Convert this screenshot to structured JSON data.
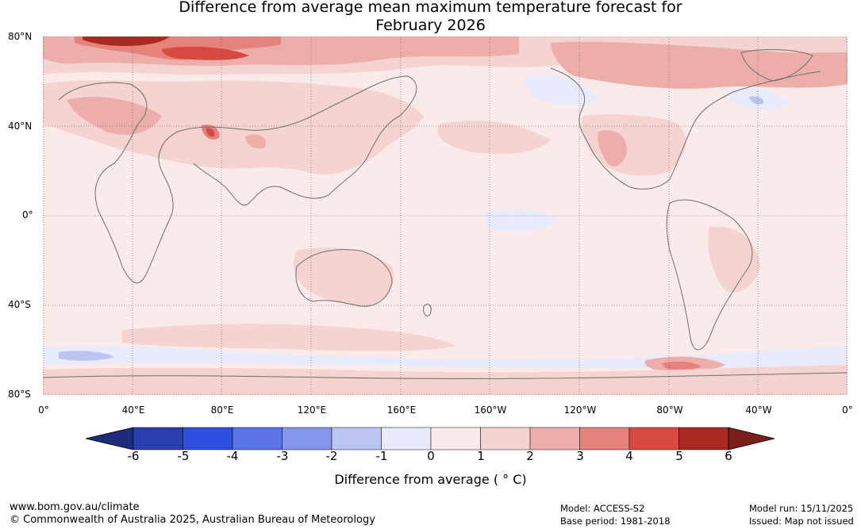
{
  "title": {
    "line1": "Difference from average mean maximum temperature forecast for",
    "line2": "February 2026"
  },
  "map": {
    "ocean_fill": "#fbeaea",
    "coast_color": "#6e6e6e",
    "lat_labels": [
      "80°N",
      "40°N",
      "0°",
      "40°S",
      "80°S"
    ],
    "lon_labels": [
      "0°",
      "40°E",
      "80°E",
      "120°E",
      "160°E",
      "160°W",
      "120°W",
      "80°W",
      "40°W",
      "0°"
    ]
  },
  "colorbar": {
    "colors": [
      "#1e2a7a",
      "#2a3fae",
      "#2f4fe0",
      "#5a73e6",
      "#8396ea",
      "#bcc4f2",
      "#e8ebfb",
      "#fbeaea",
      "#f5d3d1",
      "#edadaa",
      "#e6827c",
      "#d84a3f",
      "#a92a22",
      "#7a1f1a"
    ],
    "ticks": [
      "-6",
      "-5",
      "-4",
      "-3",
      "-2",
      "-1",
      "0",
      "1",
      "2",
      "3",
      "4",
      "5",
      "6"
    ],
    "label": "Difference from average ( ° C)"
  },
  "footer": {
    "site": "www.bom.gov.au/climate",
    "copyright": "© Commonwealth of Australia 2025, Australian Bureau of Meteorology",
    "model": "Model: ACCESS-S2",
    "base_period": "Base period: 1981-2018",
    "model_run": "Model run: 15/11/2025",
    "issued": "Issued: Map not issued"
  }
}
